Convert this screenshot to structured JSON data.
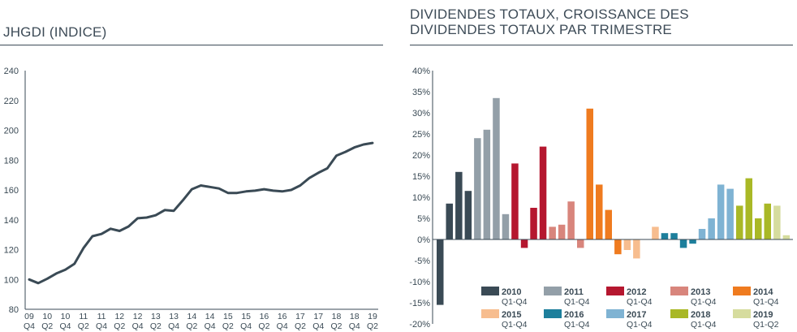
{
  "left": {
    "title": "JHGDI (INDICE)"
  },
  "right": {
    "title_line1": "DIVIDENDES TOTAUX, CROISSANCE DES",
    "title_line2": "DIVIDENDES TOTAUX PAR TRIMESTRE"
  },
  "chart_data": [
    {
      "type": "line",
      "title": "JHGDI (INDICE)",
      "xlabel": "",
      "ylabel": "",
      "ylim": [
        80,
        240
      ],
      "yticks": [
        80,
        100,
        120,
        140,
        160,
        180,
        200,
        220,
        240
      ],
      "grid": false,
      "color": "#3a4a55",
      "x_tick_labels": [
        {
          "year": "09",
          "q": "Q4"
        },
        {
          "year": "10",
          "q": "Q2"
        },
        {
          "year": "10",
          "q": "Q4"
        },
        {
          "year": "11",
          "q": "Q2"
        },
        {
          "year": "11",
          "q": "Q4"
        },
        {
          "year": "12",
          "q": "Q2"
        },
        {
          "year": "12",
          "q": "Q4"
        },
        {
          "year": "13",
          "q": "Q2"
        },
        {
          "year": "13",
          "q": "Q4"
        },
        {
          "year": "14",
          "q": "Q2"
        },
        {
          "year": "14",
          "q": "Q4"
        },
        {
          "year": "15",
          "q": "Q2"
        },
        {
          "year": "15",
          "q": "Q4"
        },
        {
          "year": "16",
          "q": "Q2"
        },
        {
          "year": "16",
          "q": "Q4"
        },
        {
          "year": "17",
          "q": "Q2"
        },
        {
          "year": "17",
          "q": "Q4"
        },
        {
          "year": "18",
          "q": "Q2"
        },
        {
          "year": "18",
          "q": "Q4"
        },
        {
          "year": "19",
          "q": "Q2"
        }
      ],
      "x": [
        "09Q4",
        "10Q1",
        "10Q2",
        "10Q3",
        "10Q4",
        "11Q1",
        "11Q2",
        "11Q3",
        "11Q4",
        "12Q1",
        "12Q2",
        "12Q3",
        "12Q4",
        "13Q1",
        "13Q2",
        "13Q3",
        "13Q4",
        "14Q1",
        "14Q2",
        "14Q3",
        "14Q4",
        "15Q1",
        "15Q2",
        "15Q3",
        "15Q4",
        "16Q1",
        "16Q2",
        "16Q3",
        "16Q4",
        "17Q1",
        "17Q2",
        "17Q3",
        "17Q4",
        "18Q1",
        "18Q2",
        "18Q3",
        "18Q4",
        "19Q1",
        "19Q2"
      ],
      "values": [
        100,
        97.5,
        100.5,
        104,
        106.5,
        110.5,
        121,
        129,
        130.5,
        134,
        132.5,
        135.5,
        141,
        141.5,
        143,
        146.5,
        146,
        153,
        160.5,
        163,
        162,
        161,
        158,
        158,
        159,
        159.5,
        160.5,
        159.5,
        159,
        160,
        163,
        168,
        171.5,
        174.5,
        183,
        185.5,
        188.5,
        190.5,
        191.5
      ]
    },
    {
      "type": "bar",
      "title": "DIVIDENDES TOTAUX, CROISSANCE DES DIVIDENDES TOTAUX PAR TRIMESTRE",
      "xlabel": "",
      "ylabel": "",
      "ylim": [
        -20,
        40
      ],
      "yticks": [
        "40%",
        "35%",
        "30%",
        "25%",
        "20%",
        "15%",
        "10%",
        "5%",
        "0%",
        "-5%",
        "-10%",
        "-15%",
        "-20%"
      ],
      "grid": false,
      "legend_placement": "bottom-right",
      "series": [
        {
          "name": "2010",
          "sub": "Q1-Q4",
          "color": "#3a4a55",
          "values": [
            -15.5,
            8.5,
            16,
            11.5
          ]
        },
        {
          "name": "2011",
          "sub": "Q1-Q4",
          "color": "#939fa8",
          "values": [
            24,
            26,
            33.5,
            6
          ]
        },
        {
          "name": "2012",
          "sub": "Q1-Q4",
          "color": "#b5172f",
          "values": [
            18,
            -2,
            7.5,
            22
          ]
        },
        {
          "name": "2013",
          "sub": "Q1-Q4",
          "color": "#d8857c",
          "values": [
            3,
            3.5,
            9,
            -2
          ]
        },
        {
          "name": "2014",
          "sub": "Q1-Q4",
          "color": "#ef7b1f",
          "values": [
            31,
            13,
            7,
            -3.5
          ]
        },
        {
          "name": "2015",
          "sub": "Q1-Q4",
          "color": "#f7bd8f",
          "values": [
            -2.5,
            -4.5,
            0,
            3
          ]
        },
        {
          "name": "2016",
          "sub": "Q1-Q4",
          "color": "#1d7f9c",
          "values": [
            1.5,
            1.5,
            -2,
            -1
          ]
        },
        {
          "name": "2017",
          "sub": "Q1-Q4",
          "color": "#7fb3d3",
          "values": [
            2.5,
            5,
            13,
            12
          ]
        },
        {
          "name": "2018",
          "sub": "Q1-Q4",
          "color": "#a9b826",
          "values": [
            8,
            14.5,
            5,
            8.5
          ]
        },
        {
          "name": "2019",
          "sub": "Q1-Q2",
          "color": "#d6dc9e",
          "values": [
            8,
            1
          ]
        }
      ]
    }
  ]
}
